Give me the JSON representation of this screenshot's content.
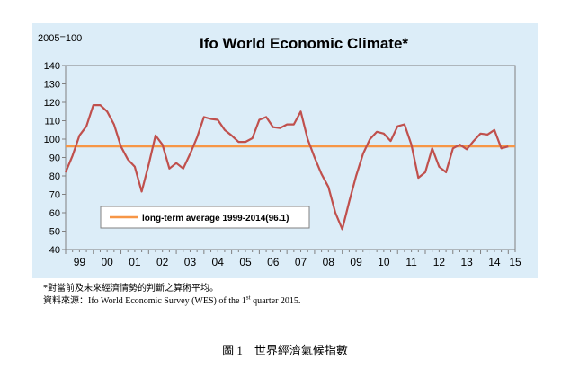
{
  "chart_data": {
    "type": "line",
    "title": "Ifo World Economic Climate*",
    "index_label": "2005=100",
    "ylim": [
      40,
      140
    ],
    "y_ticks": [
      40,
      50,
      60,
      70,
      80,
      90,
      100,
      110,
      120,
      130,
      140
    ],
    "xlim": [
      0,
      65
    ],
    "x_ticks": [
      {
        "label": "99",
        "pos": 2
      },
      {
        "label": "00",
        "pos": 6
      },
      {
        "label": "01",
        "pos": 10
      },
      {
        "label": "02",
        "pos": 14
      },
      {
        "label": "03",
        "pos": 18
      },
      {
        "label": "04",
        "pos": 22
      },
      {
        "label": "05",
        "pos": 26
      },
      {
        "label": "06",
        "pos": 30
      },
      {
        "label": "07",
        "pos": 34
      },
      {
        "label": "08",
        "pos": 38
      },
      {
        "label": "09",
        "pos": 42
      },
      {
        "label": "10",
        "pos": 46
      },
      {
        "label": "11",
        "pos": 50
      },
      {
        "label": "12",
        "pos": 54
      },
      {
        "label": "13",
        "pos": 58
      },
      {
        "label": "14",
        "pos": 62
      },
      {
        "label": "15",
        "pos": 65
      }
    ],
    "grid": false,
    "legend_position": "lower-left",
    "series": [
      {
        "name": "",
        "color": "#c0504d",
        "values": [
          82,
          91,
          102,
          107,
          118.5,
          118.5,
          115,
          108,
          96,
          89,
          85,
          71.5,
          86,
          102,
          97,
          84,
          87,
          84,
          92,
          101,
          112,
          111,
          110.5,
          105,
          102,
          98.5,
          98.5,
          100.5,
          110.5,
          112,
          106.5,
          106,
          108,
          108,
          115,
          100,
          90,
          81,
          74,
          60,
          51,
          66,
          80,
          92,
          100,
          104,
          103,
          99,
          107,
          108,
          97,
          79,
          82,
          95,
          85,
          82,
          95,
          97,
          94.5,
          99,
          103,
          102.5,
          105,
          95,
          96
        ]
      },
      {
        "name": "long-term average 1999-2014(96.1)",
        "color": "#f79646",
        "constant": 96.1
      }
    ]
  },
  "notes": {
    "note1": "*對當前及未來經濟情勢的判斷之算術平均。",
    "note2_prefix": "資料來源：Ifo World Economic Survey (WES) of the 1",
    "note2_sup": "st",
    "note2_suffix": " quarter 2015."
  },
  "caption": "圖 1　世界經濟氣候指數"
}
